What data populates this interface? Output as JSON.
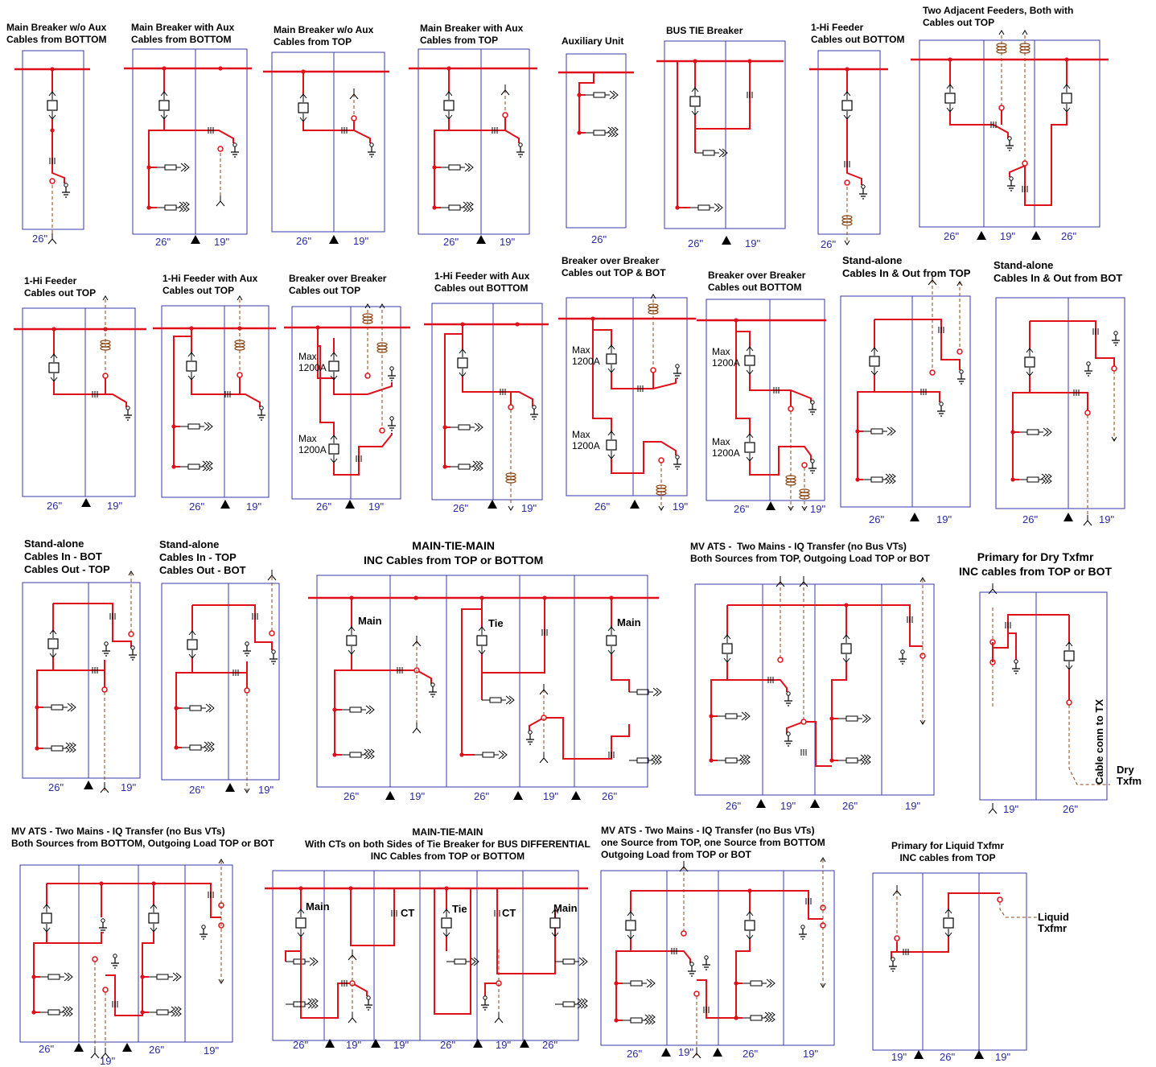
{
  "colors": {
    "bus": "#e0101a",
    "frame": "#3a3aa8",
    "dim_text": "#2a2aa0",
    "cable": "#8b4513",
    "symbol": "#000000"
  },
  "diagrams": [
    {
      "id": "d1",
      "title": "Main Breaker w/o Aux\nCables from BOTTOM",
      "dims": [
        "26\""
      ]
    },
    {
      "id": "d2",
      "title": "Main Breaker with Aux\nCables from BOTTOM",
      "dims": [
        "26\"",
        "19\""
      ]
    },
    {
      "id": "d3",
      "title": "Main Breaker w/o Aux\nCables from TOP",
      "dims": [
        "26\"",
        "19\""
      ]
    },
    {
      "id": "d4",
      "title": "Main Breaker with Aux\nCables from TOP",
      "dims": [
        "26\"",
        "19\""
      ]
    },
    {
      "id": "d5",
      "title": "Auxiliary Unit",
      "dims": [
        "26\""
      ]
    },
    {
      "id": "d6",
      "title": "BUS TIE Breaker",
      "dims": [
        "26\"",
        "19\""
      ]
    },
    {
      "id": "d7",
      "title": "1-Hi Feeder\nCables out BOTTOM",
      "dims": [
        "26\""
      ]
    },
    {
      "id": "d8",
      "title": "Two Adjacent Feeders, Both with\nCables out TOP",
      "dims": [
        "26\"",
        "19\"",
        "26\""
      ]
    },
    {
      "id": "d9",
      "title": "1-Hi Feeder\nCables out TOP",
      "dims": [
        "26\"",
        "19\""
      ]
    },
    {
      "id": "d10",
      "title": "1-Hi Feeder with Aux\nCables out TOP",
      "dims": [
        "26\"",
        "19\""
      ]
    },
    {
      "id": "d11",
      "title": "Breaker over Breaker\nCables out TOP",
      "dims": [
        "26\"",
        "19\""
      ],
      "labels": [
        "Max\n1200A",
        "Max\n1200A"
      ]
    },
    {
      "id": "d12",
      "title": "1-Hi Feeder with Aux\nCables out BOTTOM",
      "dims": [
        "26\"",
        "19\""
      ]
    },
    {
      "id": "d13",
      "title": "Breaker over Breaker\nCables out TOP & BOT",
      "dims": [
        "26\"",
        "19\""
      ],
      "labels": [
        "Max\n1200A",
        "Max\n1200A"
      ]
    },
    {
      "id": "d14",
      "title": "Breaker over Breaker\nCables out BOTTOM",
      "dims": [
        "26\"",
        "19\""
      ],
      "labels": [
        "Max\n1200A",
        "Max\n1200A"
      ]
    },
    {
      "id": "d15",
      "title": "Stand-alone\nCables In & Out from TOP",
      "dims": [
        "26\"",
        "19\""
      ]
    },
    {
      "id": "d16",
      "title": "Stand-alone\nCables In & Out from BOT",
      "dims": [
        "26\"",
        "19\""
      ]
    },
    {
      "id": "d17",
      "title": "Stand-alone\nCables In - BOT\nCables Out - TOP",
      "dims": [
        "26\"",
        "19\""
      ]
    },
    {
      "id": "d18",
      "title": "Stand-alone\nCables In - TOP\nCables Out - BOT",
      "dims": [
        "26\"",
        "19\""
      ]
    },
    {
      "id": "d19",
      "title": "MAIN-TIE-MAIN\nINC Cables from TOP or BOTTOM",
      "dims": [
        "26\"",
        "19\"",
        "26\"",
        "19\"",
        "26\""
      ],
      "labels": [
        "Main",
        "Tie",
        "Main"
      ]
    },
    {
      "id": "d20",
      "title": "MV ATS -  Two Mains - IQ Transfer (no Bus VTs)\nBoth Sources from TOP, Outgoing Load TOP or BOT",
      "dims": [
        "26\"",
        "19\"",
        "26\"",
        "19\""
      ]
    },
    {
      "id": "d21",
      "title": "Primary for Dry Txfmr\nINC cables from TOP or BOT",
      "dims": [
        "19\"",
        "26\""
      ],
      "labels": [
        "Cable conn to TX",
        "Dry\nTxfm"
      ]
    },
    {
      "id": "d22",
      "title": "MV ATS - Two Mains - IQ Transfer (no Bus VTs)\nBoth Sources from BOTTOM, Outgoing Load TOP or BOT",
      "dims": [
        "26\"",
        "19\"",
        "26\"",
        "19\""
      ]
    },
    {
      "id": "d23",
      "title": "MAIN-TIE-MAIN\nWith CTs on both Sides of Tie Breaker for BUS DIFFERENTIAL\nINC Cables from TOP or BOTTOM",
      "dims": [
        "26\"",
        "19\"",
        "19\"",
        "26\"",
        "19\"",
        "26\""
      ],
      "labels": [
        "Main",
        "CT",
        "Tie",
        "CT",
        "Main"
      ]
    },
    {
      "id": "d24",
      "title": "MV ATS - Two Mains - IQ Transfer (no Bus VTs)\none Source from TOP, one Source from BOTTOM\nOutgoing Load from TOP or BOT",
      "dims": [
        "26\"",
        "19\"",
        "26\"",
        "19\""
      ]
    },
    {
      "id": "d25",
      "title": "Primary for Liquid Txfmr\nINC cables from TOP",
      "dims": [
        "19\"",
        "26\"",
        "19\""
      ],
      "labels": [
        "Liquid\nTxfmr"
      ]
    }
  ]
}
